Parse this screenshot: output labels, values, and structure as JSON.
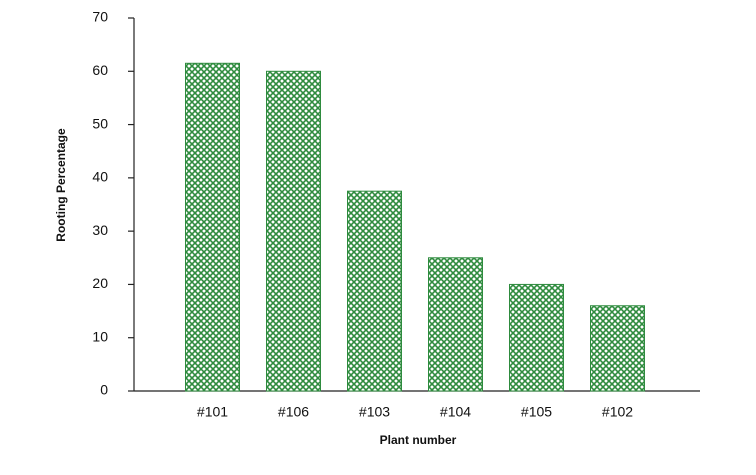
{
  "chart_data": {
    "type": "bar",
    "x_label": "Plant number",
    "y_label": "Rooting Percentage",
    "categories": [
      "#101",
      "#106",
      "#103",
      "#104",
      "#105",
      "#102"
    ],
    "values": [
      61.5,
      60,
      37.5,
      25,
      20,
      16
    ],
    "color": "#2e8b3e",
    "ylim": [
      0,
      70
    ],
    "yticks": [
      0,
      10,
      20,
      30,
      40,
      50,
      60,
      70
    ],
    "grid": false
  }
}
